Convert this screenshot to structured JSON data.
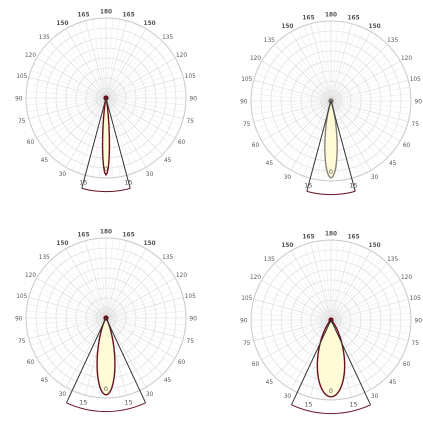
{
  "colors": {
    "background": "#ffffff",
    "grid": "#d9d9d9",
    "spoke": "#e0e0e0",
    "outer_ring": "#c8c8c8",
    "beam_fill": "#fffbd6",
    "beam_stroke_dark": "#6b1020",
    "beam_stroke_grey": "#8c8478",
    "cone": "#333333",
    "arc": "#6b1020",
    "label": "#555555"
  },
  "chart_data": [
    {
      "type": "polar",
      "angles_deg": [
        0,
        15,
        30,
        45,
        60,
        75,
        90,
        105,
        120,
        135,
        150,
        165,
        180
      ],
      "angle_labels": [
        "0",
        "15",
        "30",
        "45",
        "60",
        "75",
        "90",
        "105",
        "120",
        "135",
        "150",
        "165",
        "180"
      ],
      "angular_range_deg": [
        0,
        180
      ],
      "beam_half_angle_deg": 5,
      "cone_half_angle_deg": 15,
      "beam_outline": "dark",
      "grid": true
    },
    {
      "type": "polar",
      "angles_deg": [
        0,
        15,
        30,
        45,
        60,
        75,
        90,
        105,
        120,
        135,
        150,
        165,
        180
      ],
      "angle_labels": [
        "0",
        "15",
        "30",
        "45",
        "60",
        "75",
        "90",
        "105",
        "120",
        "135",
        "150",
        "165",
        "180"
      ],
      "angular_range_deg": [
        0,
        180
      ],
      "beam_half_angle_deg": 9,
      "cone_half_angle_deg": 15,
      "beam_outline": "grey",
      "grid": true
    },
    {
      "type": "polar",
      "angles_deg": [
        0,
        15,
        30,
        45,
        60,
        75,
        90,
        105,
        120,
        135,
        150,
        165,
        180
      ],
      "angle_labels": [
        "0",
        "15",
        "30",
        "45",
        "60",
        "75",
        "90",
        "105",
        "120",
        "135",
        "150",
        "165",
        "180"
      ],
      "angular_range_deg": [
        0,
        180
      ],
      "beam_half_angle_deg": 13,
      "cone_half_angle_deg": 25,
      "beam_outline": "dark",
      "grid": true
    },
    {
      "type": "polar",
      "angles_deg": [
        0,
        15,
        30,
        45,
        60,
        75,
        90,
        105,
        120,
        135,
        150,
        165,
        180
      ],
      "angle_labels": [
        "0",
        "15",
        "30",
        "45",
        "60",
        "75",
        "90",
        "105",
        "120",
        "135",
        "150",
        "165",
        "180"
      ],
      "angular_range_deg": [
        0,
        180
      ],
      "beam_half_angle_deg": 20,
      "cone_half_angle_deg": 25,
      "beam_outline": "dark",
      "grid": true
    }
  ]
}
